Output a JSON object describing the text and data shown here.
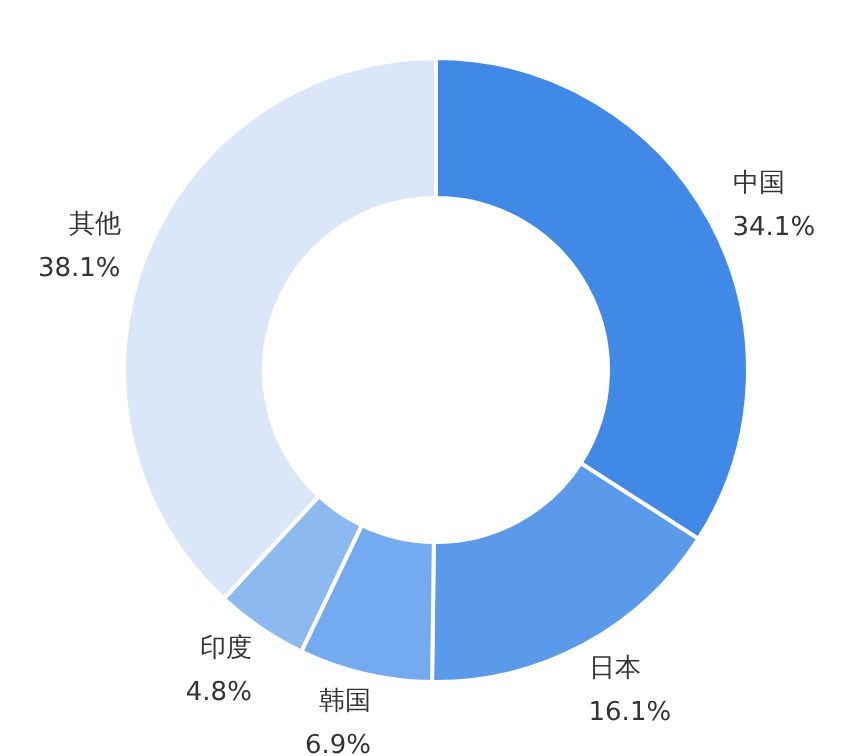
{
  "chart_data": {
    "type": "donut",
    "categories": [
      "中国",
      "日本",
      "韩国",
      "印度",
      "其他"
    ],
    "values": [
      34.1,
      16.1,
      6.9,
      4.8,
      38.1
    ],
    "value_labels": [
      "34.1%",
      "16.1%",
      "6.9%",
      "4.8%",
      "38.1%"
    ],
    "colors": [
      "#4189e6",
      "#5b9aeb",
      "#74aaef",
      "#8db9f1",
      "#dbe7f8"
    ]
  }
}
